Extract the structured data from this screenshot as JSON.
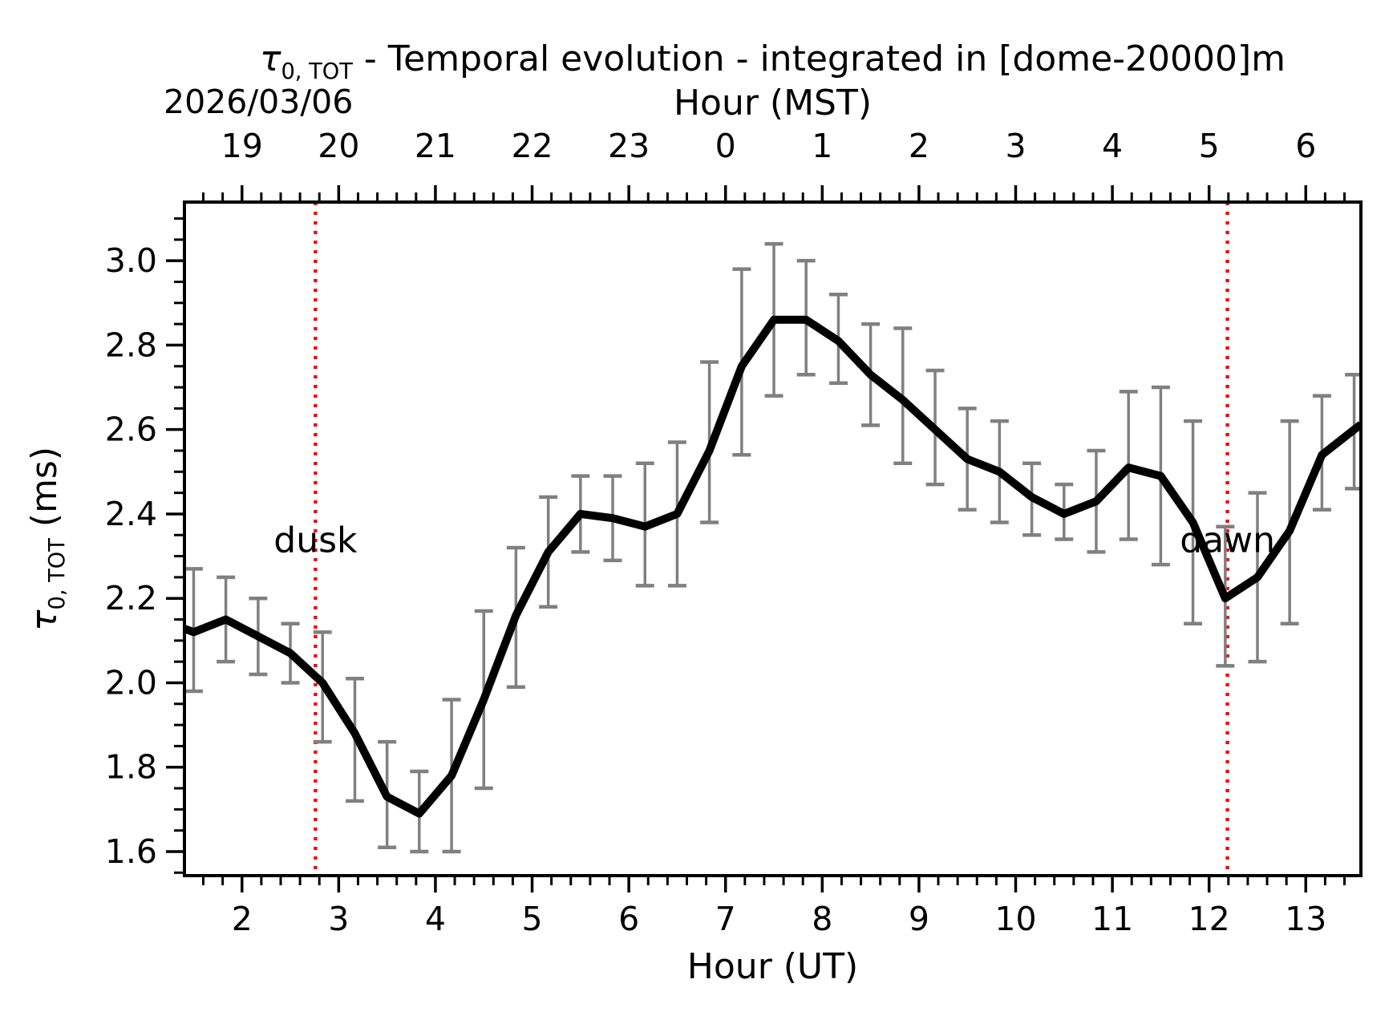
{
  "chart_data": {
    "type": "line",
    "title": {
      "symbol": "τ",
      "subscript": "0, TOT",
      "text": " - Temporal evolution - integrated in [dome-20000]m"
    },
    "date_label": "2026/03/06",
    "top_axis": {
      "label": "Hour (MST)",
      "ticks": [
        {
          "x": 2,
          "label": "19"
        },
        {
          "x": 3,
          "label": "20"
        },
        {
          "x": 4,
          "label": "21"
        },
        {
          "x": 5,
          "label": "22"
        },
        {
          "x": 6,
          "label": "23"
        },
        {
          "x": 7,
          "label": "0"
        },
        {
          "x": 8,
          "label": "1"
        },
        {
          "x": 9,
          "label": "2"
        },
        {
          "x": 10,
          "label": "3"
        },
        {
          "x": 11,
          "label": "4"
        },
        {
          "x": 12,
          "label": "5"
        },
        {
          "x": 13,
          "label": "6"
        }
      ],
      "minor_step": 0.2
    },
    "x_axis": {
      "label": "Hour (UT)",
      "range": [
        1.405,
        13.57
      ],
      "minor_step": 0.2,
      "ticks": [
        {
          "x": 2,
          "label": "2"
        },
        {
          "x": 3,
          "label": "3"
        },
        {
          "x": 4,
          "label": "4"
        },
        {
          "x": 5,
          "label": "5"
        },
        {
          "x": 6,
          "label": "6"
        },
        {
          "x": 7,
          "label": "7"
        },
        {
          "x": 8,
          "label": "8"
        },
        {
          "x": 9,
          "label": "9"
        },
        {
          "x": 10,
          "label": "10"
        },
        {
          "x": 11,
          "label": "11"
        },
        {
          "x": 12,
          "label": "12"
        },
        {
          "x": 13,
          "label": "13"
        }
      ]
    },
    "y_axis": {
      "label_symbol": "τ",
      "label_subscript": "0, TOT",
      "label_text": " (ms)",
      "range": [
        1.543,
        3.139
      ],
      "minor_step": 0.05,
      "ticks": [
        {
          "y": 1.6,
          "label": "1.6"
        },
        {
          "y": 1.8,
          "label": "1.8"
        },
        {
          "y": 2.0,
          "label": "2.0"
        },
        {
          "y": 2.2,
          "label": "2.2"
        },
        {
          "y": 2.4,
          "label": "2.4"
        },
        {
          "y": 2.6,
          "label": "2.6"
        },
        {
          "y": 2.8,
          "label": "2.8"
        },
        {
          "y": 3.0,
          "label": "3.0"
        }
      ]
    },
    "series": [
      {
        "name": "tau0-tot-mean",
        "points": [
          {
            "x": 1.5,
            "y": 2.12,
            "lo": 1.98,
            "hi": 2.27
          },
          {
            "x": 1.833,
            "y": 2.15,
            "lo": 2.05,
            "hi": 2.25
          },
          {
            "x": 2.167,
            "y": 2.11,
            "lo": 2.02,
            "hi": 2.2
          },
          {
            "x": 2.5,
            "y": 2.07,
            "lo": 2.0,
            "hi": 2.14
          },
          {
            "x": 2.833,
            "y": 2.0,
            "lo": 1.86,
            "hi": 2.12
          },
          {
            "x": 3.167,
            "y": 1.88,
            "lo": 1.72,
            "hi": 2.01
          },
          {
            "x": 3.5,
            "y": 1.73,
            "lo": 1.61,
            "hi": 1.86
          },
          {
            "x": 3.833,
            "y": 1.69,
            "lo": 1.6,
            "hi": 1.79
          },
          {
            "x": 4.167,
            "y": 1.78,
            "lo": 1.6,
            "hi": 1.96
          },
          {
            "x": 4.5,
            "y": 1.96,
            "lo": 1.75,
            "hi": 2.17
          },
          {
            "x": 4.833,
            "y": 2.16,
            "lo": 1.99,
            "hi": 2.32
          },
          {
            "x": 5.167,
            "y": 2.31,
            "lo": 2.18,
            "hi": 2.44
          },
          {
            "x": 5.5,
            "y": 2.4,
            "lo": 2.31,
            "hi": 2.49
          },
          {
            "x": 5.833,
            "y": 2.39,
            "lo": 2.29,
            "hi": 2.49
          },
          {
            "x": 6.167,
            "y": 2.37,
            "lo": 2.23,
            "hi": 2.52
          },
          {
            "x": 6.5,
            "y": 2.4,
            "lo": 2.23,
            "hi": 2.57
          },
          {
            "x": 6.833,
            "y": 2.55,
            "lo": 2.38,
            "hi": 2.76
          },
          {
            "x": 7.167,
            "y": 2.75,
            "lo": 2.54,
            "hi": 2.98
          },
          {
            "x": 7.5,
            "y": 2.86,
            "lo": 2.68,
            "hi": 3.04
          },
          {
            "x": 7.833,
            "y": 2.86,
            "lo": 2.73,
            "hi": 3.0
          },
          {
            "x": 8.167,
            "y": 2.81,
            "lo": 2.71,
            "hi": 2.92
          },
          {
            "x": 8.5,
            "y": 2.73,
            "lo": 2.61,
            "hi": 2.85
          },
          {
            "x": 8.833,
            "y": 2.67,
            "lo": 2.52,
            "hi": 2.84
          },
          {
            "x": 9.167,
            "y": 2.6,
            "lo": 2.47,
            "hi": 2.74
          },
          {
            "x": 9.5,
            "y": 2.53,
            "lo": 2.41,
            "hi": 2.65
          },
          {
            "x": 9.833,
            "y": 2.5,
            "lo": 2.38,
            "hi": 2.62
          },
          {
            "x": 10.167,
            "y": 2.44,
            "lo": 2.35,
            "hi": 2.52
          },
          {
            "x": 10.5,
            "y": 2.4,
            "lo": 2.34,
            "hi": 2.47
          },
          {
            "x": 10.833,
            "y": 2.43,
            "lo": 2.31,
            "hi": 2.55
          },
          {
            "x": 11.167,
            "y": 2.51,
            "lo": 2.34,
            "hi": 2.69
          },
          {
            "x": 11.5,
            "y": 2.49,
            "lo": 2.28,
            "hi": 2.7
          },
          {
            "x": 11.833,
            "y": 2.38,
            "lo": 2.14,
            "hi": 2.62
          },
          {
            "x": 12.167,
            "y": 2.2,
            "lo": 2.04,
            "hi": 2.37
          },
          {
            "x": 12.5,
            "y": 2.25,
            "lo": 2.05,
            "hi": 2.45
          },
          {
            "x": 12.833,
            "y": 2.36,
            "lo": 2.14,
            "hi": 2.62
          },
          {
            "x": 13.167,
            "y": 2.54,
            "lo": 2.41,
            "hi": 2.68
          },
          {
            "x": 13.5,
            "y": 2.6,
            "lo": 2.46,
            "hi": 2.73
          }
        ],
        "edge_start": {
          "x": 1.405,
          "y": 2.128
        },
        "edge_end": {
          "x": 13.57,
          "y": 2.612
        }
      }
    ],
    "annotations": [
      {
        "label": "dusk",
        "x": 2.76
      },
      {
        "label": "dawn",
        "x": 12.19
      }
    ],
    "annotation_y": 2.34,
    "style": {
      "background": "#ffffff",
      "text": "#000000",
      "line": "#000000",
      "error_bars": "#808080",
      "annotation": "#ff0000"
    },
    "grid": false,
    "legend": null
  }
}
